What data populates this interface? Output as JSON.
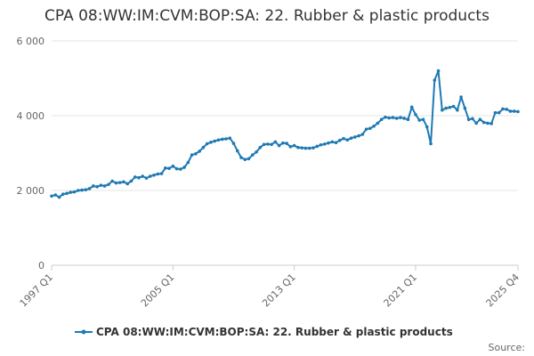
{
  "chart_data": {
    "type": "line",
    "title": "CPA 08:WW:IM:CVM:BOP:SA: 22. Rubber & plastic products",
    "xlabel": "",
    "ylabel": "",
    "x_tick_labels": [
      "1997 Q1",
      "2005 Q1",
      "2013 Q1",
      "2021 Q1",
      "2025 Q4"
    ],
    "y_tick_labels": [
      "0",
      "2 000",
      "4 000",
      "6 000"
    ],
    "ylim": [
      0,
      6000
    ],
    "grid": true,
    "legend_position": "bottom",
    "source_label": "Source:",
    "series": [
      {
        "name": "CPA 08:WW:IM:CVM:BOP:SA: 22. Rubber & plastic products",
        "color": "#1f7ab4",
        "quarter_start": "1997 Q1",
        "values": [
          1850,
          1880,
          1820,
          1900,
          1920,
          1950,
          1960,
          2000,
          2010,
          2020,
          2050,
          2120,
          2100,
          2140,
          2120,
          2160,
          2250,
          2200,
          2210,
          2230,
          2180,
          2250,
          2360,
          2340,
          2380,
          2330,
          2380,
          2410,
          2440,
          2450,
          2600,
          2590,
          2650,
          2580,
          2570,
          2620,
          2750,
          2950,
          2980,
          3050,
          3150,
          3250,
          3290,
          3320,
          3350,
          3370,
          3380,
          3400,
          3260,
          3060,
          2880,
          2830,
          2850,
          2950,
          3030,
          3150,
          3230,
          3240,
          3230,
          3300,
          3200,
          3270,
          3260,
          3170,
          3200,
          3150,
          3140,
          3130,
          3130,
          3140,
          3180,
          3220,
          3240,
          3270,
          3300,
          3280,
          3340,
          3390,
          3350,
          3400,
          3430,
          3460,
          3500,
          3640,
          3660,
          3720,
          3800,
          3900,
          3960,
          3940,
          3950,
          3930,
          3950,
          3930,
          3900,
          4230,
          4030,
          3880,
          3900,
          3700,
          3250,
          4950,
          5200,
          4150,
          4200,
          4220,
          4250,
          4150,
          4500,
          4200,
          3900,
          3920,
          3800,
          3900,
          3820,
          3800,
          3790,
          4080,
          4080,
          4180,
          4170,
          4120,
          4120,
          4110
        ]
      }
    ]
  }
}
